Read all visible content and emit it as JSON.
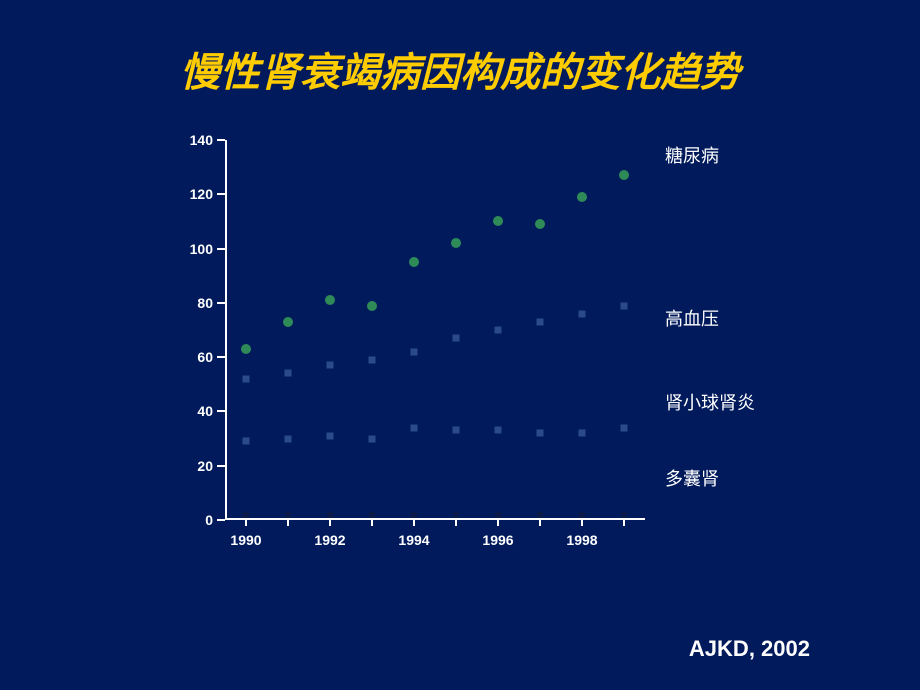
{
  "title": {
    "text": "慢性肾衰竭病因构成的变化趋势",
    "color": "#ffcc00",
    "fontsize": 40
  },
  "source": {
    "text": "AJKD, 2002",
    "fontsize": 22
  },
  "chart": {
    "type": "scatter",
    "background_color": "#001a5c",
    "axis_color": "#ffffff",
    "xlim": [
      1989.5,
      1999.5
    ],
    "ylim": [
      0,
      140
    ],
    "y_ticks": [
      0,
      20,
      40,
      60,
      80,
      100,
      120,
      140
    ],
    "x_tick_labels": [
      1990,
      1992,
      1994,
      1996,
      1998
    ],
    "y_label_fontsize": 14,
    "x_label_fontsize": 14,
    "series": [
      {
        "name": "糖尿病",
        "label": "糖尿病",
        "marker": "circle",
        "color": "#2e8b57",
        "size": 10,
        "x": [
          1990,
          1991,
          1992,
          1993,
          1994,
          1995,
          1996,
          1997,
          1998,
          1999
        ],
        "y": [
          63,
          73,
          81,
          79,
          95,
          102,
          110,
          109,
          119,
          127
        ],
        "label_y": 136
      },
      {
        "name": "高血压",
        "label": "高血压",
        "marker": "square",
        "color": "#2a4a8a",
        "size": 7,
        "x": [
          1990,
          1991,
          1992,
          1993,
          1994,
          1995,
          1996,
          1997,
          1998,
          1999
        ],
        "y": [
          52,
          54,
          57,
          59,
          62,
          67,
          70,
          73,
          76,
          79
        ],
        "label_y": 76
      },
      {
        "name": "肾小球肾炎",
        "label": "肾小球肾炎",
        "marker": "square",
        "color": "#2a4a8a",
        "size": 7,
        "x": [
          1990,
          1991,
          1992,
          1993,
          1994,
          1995,
          1996,
          1997,
          1998,
          1999
        ],
        "y": [
          29,
          30,
          31,
          30,
          34,
          33,
          33,
          32,
          32,
          34
        ],
        "label_y": 45
      },
      {
        "name": "多囊肾",
        "label": "多囊肾",
        "marker": "square",
        "color": "#0a1a4a",
        "size": 6,
        "x": [
          1990,
          1991,
          1992,
          1993,
          1994,
          1995,
          1996,
          1997,
          1998,
          1999
        ],
        "y": [
          2,
          2,
          2,
          2,
          2,
          2,
          2,
          2,
          2,
          2
        ],
        "label_y": 17
      }
    ],
    "legend_fontsize": 18,
    "legend_color": "#ffffff"
  }
}
